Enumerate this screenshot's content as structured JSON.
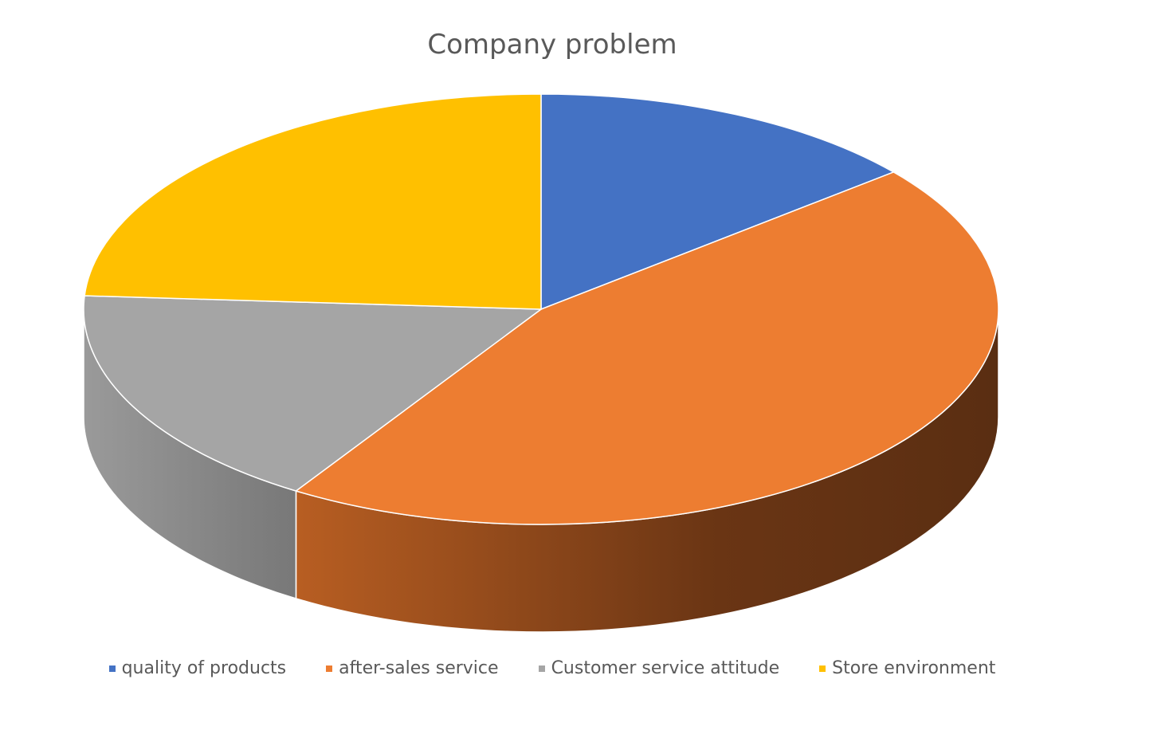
{
  "chart_data": {
    "type": "pie",
    "title": "Company problem",
    "categories": [
      "quality of products",
      "after-sales service",
      "Customer service attitude",
      "Store environment"
    ],
    "values": [
      14,
      45,
      17,
      24
    ],
    "colors": [
      "#4472C4",
      "#ED7D31",
      "#A5A5A5",
      "#FFC000"
    ],
    "legend_position": "bottom",
    "style": "3d"
  }
}
